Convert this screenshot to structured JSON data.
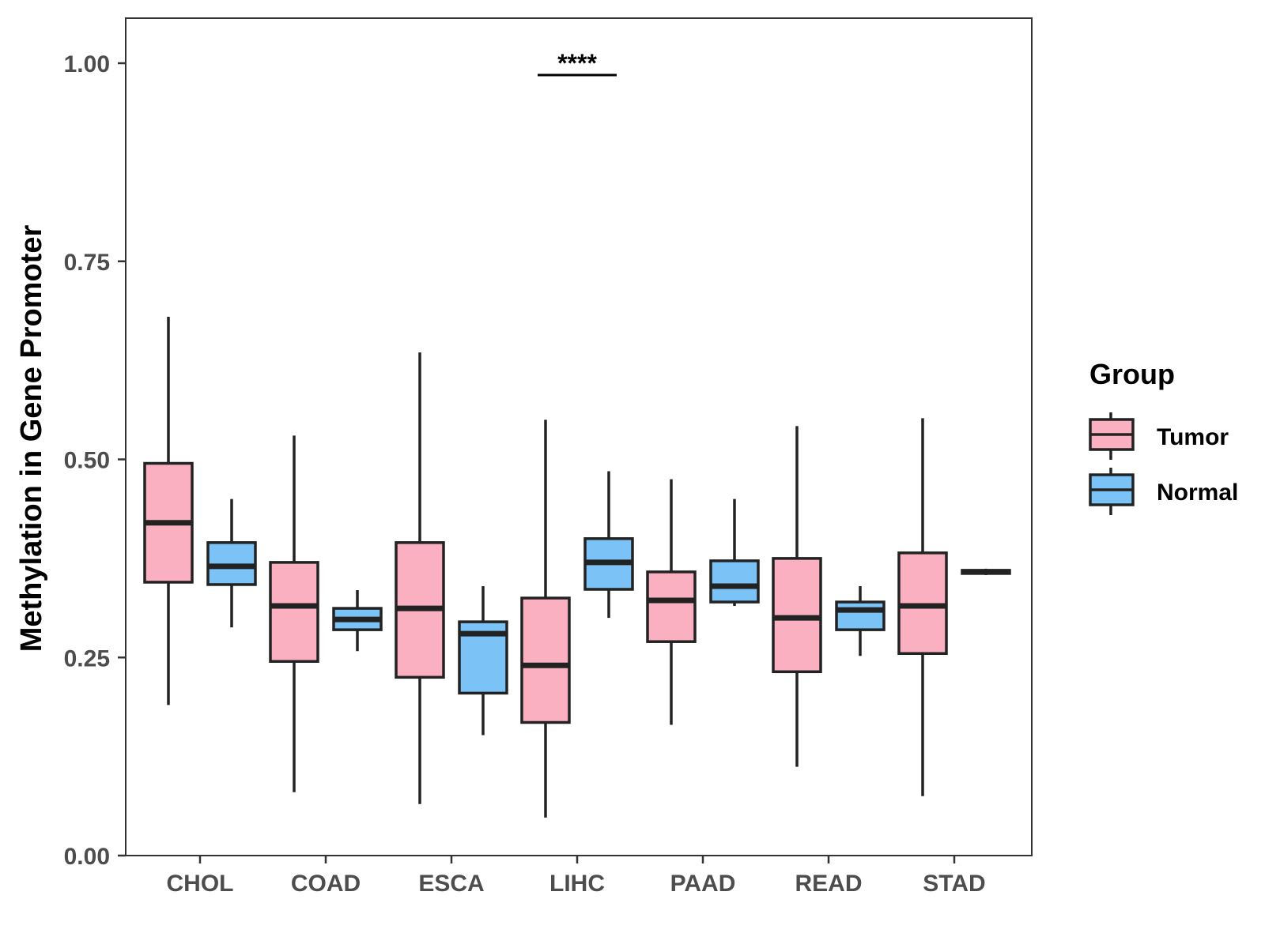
{
  "chart_data": {
    "type": "boxplot",
    "ylabel": "Methylation in Gene Promoter",
    "xlabel": "",
    "ylim": [
      0,
      1.05
    ],
    "yticks": [
      0,
      0.25,
      0.5,
      0.75,
      1.0
    ],
    "ytick_labels": [
      "0.00",
      "0.25",
      "0.50",
      "0.75",
      "1.00"
    ],
    "categories": [
      "CHOL",
      "COAD",
      "ESCA",
      "LIHC",
      "PAAD",
      "READ",
      "STAD"
    ],
    "legend": {
      "title": "Group",
      "position": "right",
      "entries": [
        {
          "name": "Tumor",
          "color": "#fbb0c2"
        },
        {
          "name": "Normal",
          "color": "#7bc2f7"
        }
      ]
    },
    "series": [
      {
        "name": "Tumor",
        "color": "#fbb0c2",
        "boxes": [
          {
            "min": 0.19,
            "q1": 0.345,
            "median": 0.42,
            "q3": 0.495,
            "max": 0.68
          },
          {
            "min": 0.08,
            "q1": 0.245,
            "median": 0.315,
            "q3": 0.37,
            "max": 0.53
          },
          {
            "min": 0.065,
            "q1": 0.225,
            "median": 0.312,
            "q3": 0.395,
            "max": 0.635
          },
          {
            "min": 0.048,
            "q1": 0.168,
            "median": 0.24,
            "q3": 0.325,
            "max": 0.55
          },
          {
            "min": 0.165,
            "q1": 0.27,
            "median": 0.322,
            "q3": 0.358,
            "max": 0.475
          },
          {
            "min": 0.112,
            "q1": 0.232,
            "median": 0.3,
            "q3": 0.375,
            "max": 0.542
          },
          {
            "min": 0.075,
            "q1": 0.255,
            "median": 0.315,
            "q3": 0.382,
            "max": 0.552
          }
        ]
      },
      {
        "name": "Normal",
        "color": "#7bc2f7",
        "boxes": [
          {
            "min": 0.288,
            "q1": 0.342,
            "median": 0.365,
            "q3": 0.395,
            "max": 0.45
          },
          {
            "min": 0.258,
            "q1": 0.285,
            "median": 0.298,
            "q3": 0.312,
            "max": 0.335
          },
          {
            "min": 0.152,
            "q1": 0.205,
            "median": 0.28,
            "q3": 0.295,
            "max": 0.34
          },
          {
            "min": 0.3,
            "q1": 0.336,
            "median": 0.37,
            "q3": 0.4,
            "max": 0.485
          },
          {
            "min": 0.315,
            "q1": 0.32,
            "median": 0.34,
            "q3": 0.372,
            "max": 0.45
          },
          {
            "min": 0.252,
            "q1": 0.285,
            "median": 0.31,
            "q3": 0.32,
            "max": 0.34
          },
          {
            "min": 0.354,
            "q1": 0.356,
            "median": 0.358,
            "q3": 0.36,
            "max": 0.362
          }
        ]
      }
    ],
    "annotations": [
      {
        "text": "****",
        "category": "LIHC",
        "y": 0.985
      }
    ]
  }
}
